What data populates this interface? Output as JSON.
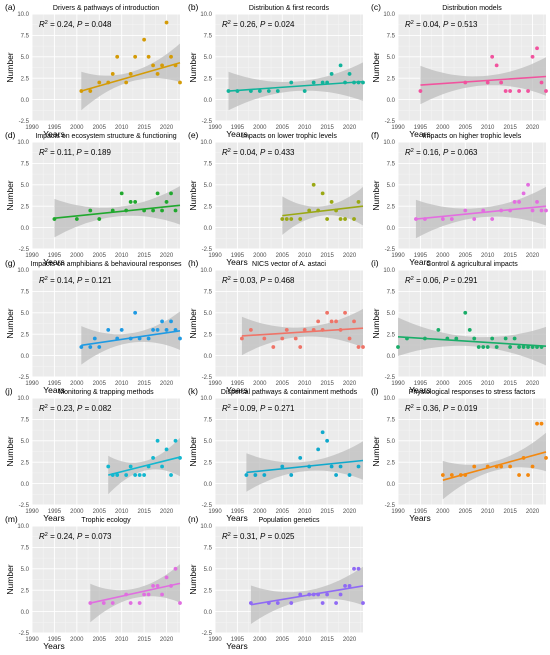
{
  "axis": {
    "xlabel": "Years",
    "ylabel": "Number",
    "xlim": [
      1990,
      2023
    ],
    "ylim": [
      -2.5,
      10
    ],
    "xticks": [
      "1990",
      "1995",
      "2000",
      "2005",
      "2010",
      "2015",
      "2020"
    ],
    "yticks": [
      "-2.5",
      "0.0",
      "2.5",
      "5.0",
      "7.5",
      "10.0"
    ],
    "grid": true,
    "panel_bg": "#ebebeb"
  },
  "chart_data": [
    {
      "id": "a",
      "tag": "(a)",
      "title": "Drivers & pathways of introduction",
      "type": "scatter",
      "color": "#d49b07",
      "r2": "0.24",
      "p": "0.048",
      "fit": [
        2001,
        1.0,
        2023,
        4.3
      ],
      "points": [
        [
          2001,
          1
        ],
        [
          2003,
          1
        ],
        [
          2005,
          2
        ],
        [
          2007,
          2
        ],
        [
          2008,
          3
        ],
        [
          2009,
          5
        ],
        [
          2011,
          2
        ],
        [
          2012,
          3
        ],
        [
          2013,
          5
        ],
        [
          2015,
          7
        ],
        [
          2016,
          5
        ],
        [
          2017,
          4
        ],
        [
          2018,
          3
        ],
        [
          2019,
          4
        ],
        [
          2020,
          9
        ],
        [
          2021,
          5
        ],
        [
          2022,
          4
        ],
        [
          2023,
          2
        ]
      ]
    },
    {
      "id": "b",
      "tag": "(b)",
      "title": "Distribution & first records",
      "type": "scatter",
      "color": "#12b39b",
      "r2": "0.26",
      "p": "0.024",
      "fit": [
        1993,
        1.0,
        2023,
        2.1
      ],
      "points": [
        [
          1993,
          1
        ],
        [
          1995,
          1
        ],
        [
          1998,
          1
        ],
        [
          2000,
          1
        ],
        [
          2002,
          1
        ],
        [
          2004,
          1
        ],
        [
          2007,
          2
        ],
        [
          2010,
          1
        ],
        [
          2012,
          2
        ],
        [
          2014,
          2
        ],
        [
          2015,
          2
        ],
        [
          2016,
          3
        ],
        [
          2018,
          4
        ],
        [
          2019,
          2
        ],
        [
          2020,
          3
        ],
        [
          2021,
          2
        ],
        [
          2022,
          2
        ],
        [
          2023,
          2
        ]
      ]
    },
    {
      "id": "c",
      "tag": "(c)",
      "title": "Distribution models",
      "type": "scatter",
      "color": "#f1539e",
      "r2": "0.04",
      "p": "0.513",
      "fit": [
        1995,
        1.7,
        2023,
        2.7
      ],
      "points": [
        [
          1995,
          1
        ],
        [
          2005,
          2
        ],
        [
          2010,
          2
        ],
        [
          2011,
          5
        ],
        [
          2012,
          4
        ],
        [
          2013,
          2
        ],
        [
          2014,
          1
        ],
        [
          2015,
          1
        ],
        [
          2017,
          1
        ],
        [
          2019,
          1
        ],
        [
          2020,
          5
        ],
        [
          2021,
          6
        ],
        [
          2022,
          2
        ],
        [
          2023,
          1
        ]
      ]
    },
    {
      "id": "d",
      "tag": "(d)",
      "title": "Impacts on ecosystem structure & functioning",
      "type": "scatter",
      "color": "#20a82e",
      "r2": "0.11",
      "p": "0.189",
      "fit": [
        1995,
        1.1,
        2023,
        2.6
      ],
      "points": [
        [
          1995,
          1
        ],
        [
          2000,
          1
        ],
        [
          2003,
          2
        ],
        [
          2005,
          1
        ],
        [
          2008,
          2
        ],
        [
          2010,
          4
        ],
        [
          2011,
          2
        ],
        [
          2012,
          3
        ],
        [
          2013,
          3
        ],
        [
          2015,
          2
        ],
        [
          2017,
          2
        ],
        [
          2018,
          4
        ],
        [
          2019,
          2
        ],
        [
          2020,
          3
        ],
        [
          2021,
          4
        ],
        [
          2022,
          2
        ]
      ]
    },
    {
      "id": "e",
      "tag": "(e)",
      "title": "Impacts on lower trophic levels",
      "type": "scatter",
      "color": "#9aa814",
      "r2": "0.04",
      "p": "0.433",
      "fit": [
        2005,
        1.4,
        2023,
        2.5
      ],
      "points": [
        [
          2005,
          1
        ],
        [
          2006,
          1
        ],
        [
          2007,
          1
        ],
        [
          2009,
          1
        ],
        [
          2011,
          2
        ],
        [
          2012,
          5
        ],
        [
          2013,
          2
        ],
        [
          2014,
          4
        ],
        [
          2015,
          1
        ],
        [
          2016,
          3
        ],
        [
          2017,
          2
        ],
        [
          2018,
          1
        ],
        [
          2019,
          1
        ],
        [
          2021,
          1
        ],
        [
          2022,
          3
        ]
      ]
    },
    {
      "id": "f",
      "tag": "(f)",
      "title": "Impacts on higher trophic levels",
      "type": "scatter",
      "color": "#e36ee0",
      "r2": "0.16",
      "p": "0.063",
      "fit": [
        1994,
        1.0,
        2023,
        2.5
      ],
      "points": [
        [
          1994,
          1
        ],
        [
          1996,
          1
        ],
        [
          2000,
          1
        ],
        [
          2002,
          1
        ],
        [
          2005,
          2
        ],
        [
          2007,
          1
        ],
        [
          2009,
          2
        ],
        [
          2011,
          1
        ],
        [
          2013,
          2
        ],
        [
          2015,
          2
        ],
        [
          2016,
          3
        ],
        [
          2017,
          3
        ],
        [
          2018,
          4
        ],
        [
          2019,
          5
        ],
        [
          2020,
          2
        ],
        [
          2021,
          3
        ],
        [
          2022,
          2
        ],
        [
          2023,
          2
        ]
      ]
    },
    {
      "id": "g",
      "tag": "(g)",
      "title": "Impacts on amphibians & behavioural responses",
      "type": "scatter",
      "color": "#1f9ae3",
      "r2": "0.14",
      "p": "0.121",
      "fit": [
        2001,
        1.2,
        2023,
        2.9
      ],
      "points": [
        [
          2001,
          1
        ],
        [
          2003,
          1
        ],
        [
          2004,
          2
        ],
        [
          2005,
          1
        ],
        [
          2007,
          3
        ],
        [
          2009,
          2
        ],
        [
          2010,
          3
        ],
        [
          2012,
          2
        ],
        [
          2013,
          5
        ],
        [
          2014,
          2
        ],
        [
          2016,
          2
        ],
        [
          2017,
          3
        ],
        [
          2018,
          3
        ],
        [
          2019,
          4
        ],
        [
          2020,
          3
        ],
        [
          2021,
          4
        ],
        [
          2022,
          3
        ],
        [
          2023,
          2
        ]
      ]
    },
    {
      "id": "h",
      "tag": "(h)",
      "title": "NICS vector of A. astaci",
      "type": "scatter",
      "color": "#ef7468",
      "r2": "0.03",
      "p": "0.468",
      "fit": [
        1996,
        2.3,
        2023,
        3.2
      ],
      "points": [
        [
          1996,
          2
        ],
        [
          1998,
          3
        ],
        [
          2001,
          2
        ],
        [
          2003,
          1
        ],
        [
          2005,
          2
        ],
        [
          2006,
          3
        ],
        [
          2008,
          2
        ],
        [
          2009,
          1
        ],
        [
          2010,
          3
        ],
        [
          2012,
          3
        ],
        [
          2013,
          4
        ],
        [
          2014,
          3
        ],
        [
          2015,
          5
        ],
        [
          2016,
          4
        ],
        [
          2017,
          4
        ],
        [
          2018,
          3
        ],
        [
          2019,
          5
        ],
        [
          2020,
          2
        ],
        [
          2021,
          4
        ],
        [
          2022,
          1
        ],
        [
          2023,
          1
        ]
      ]
    },
    {
      "id": "i",
      "tag": "(i)",
      "title": "Control & agricultural impacts",
      "type": "scatter",
      "color": "#1aad69",
      "r2": "0.06",
      "p": "0.291",
      "fit": [
        1990,
        2.2,
        2023,
        1.1
      ],
      "points": [
        [
          1990,
          1
        ],
        [
          1992,
          2
        ],
        [
          1996,
          2
        ],
        [
          1999,
          3
        ],
        [
          2001,
          2
        ],
        [
          2003,
          2
        ],
        [
          2005,
          5
        ],
        [
          2006,
          3
        ],
        [
          2007,
          2
        ],
        [
          2008,
          1
        ],
        [
          2009,
          1
        ],
        [
          2010,
          1
        ],
        [
          2011,
          2
        ],
        [
          2012,
          1
        ],
        [
          2014,
          2
        ],
        [
          2015,
          1
        ],
        [
          2016,
          2
        ],
        [
          2017,
          1
        ],
        [
          2018,
          1
        ],
        [
          2019,
          1
        ],
        [
          2020,
          1
        ],
        [
          2021,
          1
        ],
        [
          2022,
          1
        ]
      ]
    },
    {
      "id": "j",
      "tag": "(j)",
      "title": "Monitoring & trapping methods",
      "type": "scatter",
      "color": "#13b7cf",
      "r2": "0.23",
      "p": "0.082",
      "fit": [
        2007,
        1.0,
        2023,
        3.1
      ],
      "points": [
        [
          2007,
          2
        ],
        [
          2008,
          1
        ],
        [
          2009,
          1
        ],
        [
          2011,
          1
        ],
        [
          2012,
          2
        ],
        [
          2013,
          1
        ],
        [
          2014,
          1
        ],
        [
          2015,
          1
        ],
        [
          2016,
          2
        ],
        [
          2017,
          3
        ],
        [
          2018,
          5
        ],
        [
          2019,
          2
        ],
        [
          2020,
          4
        ],
        [
          2021,
          1
        ],
        [
          2022,
          5
        ],
        [
          2023,
          3
        ]
      ]
    },
    {
      "id": "k",
      "tag": "(k)",
      "title": "Dispersal pathways & containment methods",
      "type": "scatter",
      "color": "#10a9cc",
      "r2": "0.09",
      "p": "0.271",
      "fit": [
        1997,
        1.3,
        2023,
        2.7
      ],
      "points": [
        [
          1997,
          1
        ],
        [
          1999,
          1
        ],
        [
          2001,
          1
        ],
        [
          2005,
          2
        ],
        [
          2007,
          1
        ],
        [
          2009,
          3
        ],
        [
          2011,
          2
        ],
        [
          2013,
          4
        ],
        [
          2014,
          6
        ],
        [
          2015,
          5
        ],
        [
          2016,
          2
        ],
        [
          2017,
          1
        ],
        [
          2018,
          2
        ],
        [
          2020,
          1
        ],
        [
          2022,
          2
        ]
      ]
    },
    {
      "id": "l",
      "tag": "(l)",
      "title": "Physiological responses to stress factors",
      "type": "scatter",
      "color": "#f3880f",
      "r2": "0.36",
      "p": "0.019",
      "fit": [
        2000,
        0.4,
        2023,
        3.7
      ],
      "points": [
        [
          2000,
          1
        ],
        [
          2002,
          1
        ],
        [
          2004,
          1
        ],
        [
          2005,
          1
        ],
        [
          2007,
          2
        ],
        [
          2010,
          2
        ],
        [
          2012,
          2
        ],
        [
          2013,
          2
        ],
        [
          2015,
          2
        ],
        [
          2017,
          1
        ],
        [
          2018,
          3
        ],
        [
          2019,
          1
        ],
        [
          2020,
          2
        ],
        [
          2021,
          7
        ],
        [
          2022,
          7
        ],
        [
          2023,
          3
        ]
      ]
    },
    {
      "id": "m",
      "tag": "(m)",
      "title": "Trophic ecology",
      "type": "scatter",
      "color": "#e06ee0",
      "r2": "0.24",
      "p": "0.073",
      "fit": [
        2003,
        1.0,
        2023,
        3.3
      ],
      "points": [
        [
          2003,
          1
        ],
        [
          2006,
          1
        ],
        [
          2008,
          1
        ],
        [
          2011,
          2
        ],
        [
          2012,
          1
        ],
        [
          2014,
          1
        ],
        [
          2015,
          2
        ],
        [
          2016,
          2
        ],
        [
          2017,
          3
        ],
        [
          2018,
          3
        ],
        [
          2019,
          2
        ],
        [
          2020,
          4
        ],
        [
          2021,
          3
        ],
        [
          2022,
          5
        ],
        [
          2023,
          1
        ]
      ]
    },
    {
      "id": "n",
      "tag": "(n)",
      "title": "Population genetics",
      "type": "scatter",
      "color": "#8f6af4",
      "r2": "0.31",
      "p": "0.025",
      "fit": [
        1998,
        0.8,
        2023,
        3.0
      ],
      "points": [
        [
          1998,
          1
        ],
        [
          2002,
          1
        ],
        [
          2004,
          1
        ],
        [
          2007,
          1
        ],
        [
          2009,
          2
        ],
        [
          2011,
          2
        ],
        [
          2012,
          2
        ],
        [
          2013,
          2
        ],
        [
          2014,
          1
        ],
        [
          2015,
          2
        ],
        [
          2017,
          1
        ],
        [
          2018,
          2
        ],
        [
          2019,
          3
        ],
        [
          2020,
          3
        ],
        [
          2021,
          5
        ],
        [
          2022,
          5
        ],
        [
          2023,
          1
        ]
      ]
    }
  ]
}
